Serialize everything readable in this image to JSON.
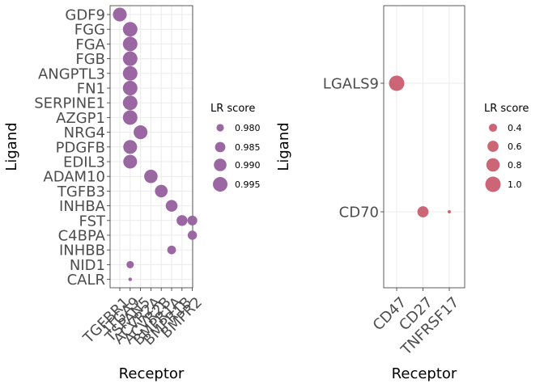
{
  "chart_data": [
    {
      "type": "scatter",
      "color": "#9b67a3",
      "xlabel": "Receptor",
      "ylabel": "Ligand",
      "x_categories": [
        "TGFBR1",
        "ITGA9",
        "TSPAN5",
        "ACVR2A",
        "ACVR2B",
        "BMPR1A",
        "BMPR1B",
        "BMPR2"
      ],
      "y_categories": [
        "GDF9",
        "FGG",
        "FGA",
        "FGB",
        "ANGPTL3",
        "FN1",
        "SERPINE1",
        "AZGP1",
        "NRG4",
        "PDGFB",
        "EDIL3",
        "ADAM10",
        "TGFB3",
        "INHBA",
        "FST",
        "C4BPA",
        "INHBB",
        "NID1",
        "CALR"
      ],
      "points": [
        {
          "x": "TGFBR1",
          "y": "GDF9",
          "score": 0.993
        },
        {
          "x": "ITGA9",
          "y": "FGG",
          "score": 0.995
        },
        {
          "x": "ITGA9",
          "y": "FGA",
          "score": 0.995
        },
        {
          "x": "ITGA9",
          "y": "FGB",
          "score": 0.995
        },
        {
          "x": "ITGA9",
          "y": "ANGPTL3",
          "score": 0.995
        },
        {
          "x": "ITGA9",
          "y": "FN1",
          "score": 0.995
        },
        {
          "x": "ITGA9",
          "y": "SERPINE1",
          "score": 0.995
        },
        {
          "x": "ITGA9",
          "y": "AZGP1",
          "score": 0.995
        },
        {
          "x": "TSPAN5",
          "y": "NRG4",
          "score": 0.993
        },
        {
          "x": "ITGA9",
          "y": "PDGFB",
          "score": 0.993
        },
        {
          "x": "ITGA9",
          "y": "EDIL3",
          "score": 0.993
        },
        {
          "x": "ACVR2A",
          "y": "ADAM10",
          "score": 0.992
        },
        {
          "x": "ACVR2B",
          "y": "TGFB3",
          "score": 0.99
        },
        {
          "x": "BMPR1A",
          "y": "INHBA",
          "score": 0.988
        },
        {
          "x": "BMPR1B",
          "y": "FST",
          "score": 0.986
        },
        {
          "x": "BMPR2",
          "y": "FST",
          "score": 0.984
        },
        {
          "x": "BMPR2",
          "y": "C4BPA",
          "score": 0.983
        },
        {
          "x": "BMPR1A",
          "y": "INHBB",
          "score": 0.982
        },
        {
          "x": "ITGA9",
          "y": "NID1",
          "score": 0.98
        },
        {
          "x": "ITGA9",
          "y": "CALR",
          "score": 0.976
        }
      ],
      "legend": {
        "title": "LR score",
        "values": [
          0.98,
          0.985,
          0.99,
          0.995
        ],
        "labels": [
          "0.980",
          "0.985",
          "0.990",
          "0.995"
        ],
        "position": "right"
      },
      "grid": true
    },
    {
      "type": "scatter",
      "color": "#cc6677",
      "xlabel": "Receptor",
      "ylabel": "Ligand",
      "x_categories": [
        "CD47",
        "CD27",
        "TNFRSF17"
      ],
      "y_categories": [
        "LGALS9",
        "CD70"
      ],
      "points": [
        {
          "x": "CD47",
          "y": "LGALS9",
          "score": 1.0
        },
        {
          "x": "CD27",
          "y": "CD70",
          "score": 0.6
        },
        {
          "x": "TNFRSF17",
          "y": "CD70",
          "score": 0.2
        }
      ],
      "legend": {
        "title": "LR score",
        "values": [
          0.4,
          0.6,
          0.8,
          1.0
        ],
        "labels": [
          "0.4",
          "0.6",
          "0.8",
          "1.0"
        ],
        "position": "right"
      },
      "grid": true
    }
  ]
}
